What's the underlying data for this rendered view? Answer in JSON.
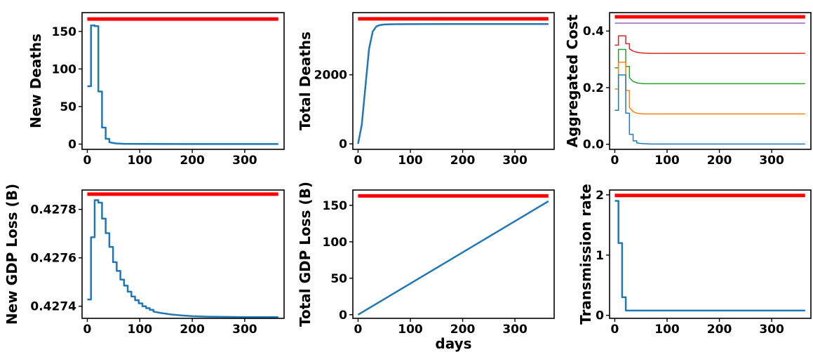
{
  "chart_data": [
    {
      "type": "line",
      "ylabel": "New Deaths",
      "xlabel": "",
      "xlim": [
        -10,
        375
      ],
      "ylim": [
        -7,
        175
      ],
      "xticks": [
        0,
        100,
        200,
        300
      ],
      "yticks": [
        0,
        50,
        100,
        150
      ],
      "yticklabels": [
        "0",
        "50",
        "100",
        "150"
      ],
      "series": [
        {
          "color": "#ff0000",
          "width": 5,
          "x": [
            0,
            364
          ],
          "y": [
            166.5,
            166.5
          ]
        },
        {
          "color": "#1f77b4",
          "width": 2.5,
          "x": [
            0,
            7,
            7,
            14,
            14,
            21,
            21,
            28,
            28,
            35,
            35,
            42,
            42,
            49,
            56,
            70,
            100,
            200,
            364
          ],
          "y": [
            77,
            77,
            158,
            158,
            157,
            157,
            70,
            70,
            22,
            22,
            7,
            7,
            2.5,
            1.5,
            0.8,
            0.4,
            0.2,
            0.1,
            0.1
          ]
        }
      ]
    },
    {
      "type": "line",
      "ylabel": "Total Deaths",
      "xlabel": "",
      "xlim": [
        -10,
        375
      ],
      "ylim": [
        -160,
        3800
      ],
      "xticks": [
        0,
        100,
        200,
        300
      ],
      "yticks": [
        0,
        2000
      ],
      "yticklabels": [
        "0",
        "2000"
      ],
      "series": [
        {
          "color": "#ff0000",
          "width": 5,
          "x": [
            0,
            364
          ],
          "y": [
            3620,
            3620
          ]
        },
        {
          "color": "#1f77b4",
          "width": 2.5,
          "x": [
            0,
            7,
            14,
            21,
            28,
            35,
            42,
            49,
            56,
            70,
            100,
            200,
            364
          ],
          "y": [
            0,
            540,
            1650,
            2750,
            3250,
            3400,
            3440,
            3455,
            3460,
            3465,
            3468,
            3470,
            3470
          ]
        }
      ]
    },
    {
      "type": "line",
      "ylabel": "Aggregated Cost",
      "xlabel": "",
      "xlim": [
        -10,
        375
      ],
      "ylim": [
        -0.018,
        0.465
      ],
      "xticks": [
        0,
        100,
        200,
        300
      ],
      "yticks": [
        0.0,
        0.2,
        0.4
      ],
      "yticklabels": [
        "0.0",
        "0.2",
        "0.4"
      ],
      "series": [
        {
          "color": "#ff0000",
          "width": 5,
          "x": [
            0,
            364
          ],
          "y": [
            0.45,
            0.45
          ]
        },
        {
          "color": "#9467bd",
          "width": 1.5,
          "x": [
            0,
            364
          ],
          "y": [
            0.428,
            0.428
          ]
        },
        {
          "color": "#d62728",
          "width": 1.5,
          "x": [
            0,
            7,
            7,
            21,
            21,
            28,
            28,
            35,
            42,
            49,
            56,
            70,
            364
          ],
          "y": [
            0.35,
            0.35,
            0.383,
            0.383,
            0.355,
            0.355,
            0.337,
            0.329,
            0.325,
            0.323,
            0.322,
            0.321,
            0.321
          ]
        },
        {
          "color": "#2ca02c",
          "width": 1.5,
          "x": [
            0,
            7,
            7,
            21,
            21,
            28,
            28,
            35,
            42,
            49,
            56,
            70,
            364
          ],
          "y": [
            0.27,
            0.27,
            0.335,
            0.335,
            0.275,
            0.275,
            0.235,
            0.222,
            0.217,
            0.215,
            0.214,
            0.214,
            0.214
          ]
        },
        {
          "color": "#ff7f0e",
          "width": 1.5,
          "x": [
            0,
            7,
            7,
            21,
            21,
            28,
            28,
            35,
            42,
            49,
            56,
            70,
            364
          ],
          "y": [
            0.195,
            0.195,
            0.29,
            0.29,
            0.19,
            0.19,
            0.13,
            0.115,
            0.11,
            0.108,
            0.107,
            0.107,
            0.107
          ]
        },
        {
          "color": "#1f77b4",
          "width": 1.5,
          "x": [
            0,
            7,
            7,
            21,
            21,
            28,
            28,
            35,
            35,
            42,
            42,
            49,
            56,
            70,
            364
          ],
          "y": [
            0.12,
            0.12,
            0.245,
            0.245,
            0.11,
            0.11,
            0.035,
            0.035,
            0.012,
            0.012,
            0.005,
            0.003,
            0.002,
            0.001,
            0.001
          ]
        }
      ]
    },
    {
      "type": "line",
      "ylabel": "New GDP Loss (B)",
      "xlabel": "",
      "xlim": [
        -10,
        375
      ],
      "ylim": [
        0.42735,
        0.42788
      ],
      "xticks": [
        0,
        100,
        200,
        300
      ],
      "yticks": [
        0.4274,
        0.4276,
        0.4278
      ],
      "yticklabels": [
        "0.4274",
        "0.4276",
        "0.4278"
      ],
      "series": [
        {
          "color": "#ff0000",
          "width": 5,
          "x": [
            0,
            364
          ],
          "y": [
            0.427863,
            0.427863
          ]
        },
        {
          "color": "#1f77b4",
          "width": 2.5,
          "x": [
            0,
            7,
            7,
            14,
            14,
            21,
            21,
            28,
            28,
            35,
            35,
            42,
            42,
            49,
            49,
            56,
            56,
            63,
            63,
            70,
            70,
            77,
            77,
            84,
            84,
            91,
            91,
            98,
            98,
            105,
            105,
            112,
            112,
            119,
            119,
            126,
            126,
            140,
            160,
            180,
            200,
            230,
            260,
            300,
            364
          ],
          "y": [
            0.427428,
            0.427428,
            0.427685,
            0.427685,
            0.427838,
            0.427838,
            0.427828,
            0.427828,
            0.427762,
            0.427762,
            0.427702,
            0.427702,
            0.427645,
            0.427645,
            0.427582,
            0.427582,
            0.427546,
            0.427546,
            0.42751,
            0.42751,
            0.427485,
            0.427485,
            0.42746,
            0.42746,
            0.42744,
            0.42744,
            0.427425,
            0.427425,
            0.427412,
            0.427412,
            0.4274,
            0.4274,
            0.427392,
            0.427392,
            0.427385,
            0.427385,
            0.427378,
            0.427372,
            0.427366,
            0.427362,
            0.427359,
            0.427357,
            0.427356,
            0.427355,
            0.427355
          ]
        }
      ]
    },
    {
      "type": "line",
      "ylabel": "Total GDP Loss (B)",
      "xlabel": "days",
      "xlim": [
        -10,
        375
      ],
      "ylim": [
        -5,
        171
      ],
      "xticks": [
        0,
        100,
        200,
        300
      ],
      "yticks": [
        0,
        50,
        100,
        150
      ],
      "yticklabels": [
        "0",
        "50",
        "100",
        "150"
      ],
      "series": [
        {
          "color": "#ff0000",
          "width": 5,
          "x": [
            0,
            364
          ],
          "y": [
            163,
            163
          ]
        },
        {
          "color": "#1f77b4",
          "width": 2.5,
          "x": [
            0,
            364
          ],
          "y": [
            0,
            155.6
          ]
        }
      ]
    },
    {
      "type": "line",
      "ylabel": "Transmission rate",
      "xlabel": "",
      "xlim": [
        -10,
        375
      ],
      "ylim": [
        -0.05,
        2.08
      ],
      "xticks": [
        0,
        100,
        200,
        300
      ],
      "yticks": [
        0,
        1,
        2
      ],
      "yticklabels": [
        "0",
        "1",
        "2"
      ],
      "series": [
        {
          "color": "#ff0000",
          "width": 5,
          "x": [
            0,
            364
          ],
          "y": [
            1.99,
            1.99
          ]
        },
        {
          "color": "#1f77b4",
          "width": 2.5,
          "x": [
            0,
            7,
            7,
            14,
            14,
            21,
            21,
            364
          ],
          "y": [
            1.9,
            1.9,
            1.2,
            1.2,
            0.3,
            0.3,
            0.08,
            0.08
          ]
        }
      ]
    }
  ]
}
